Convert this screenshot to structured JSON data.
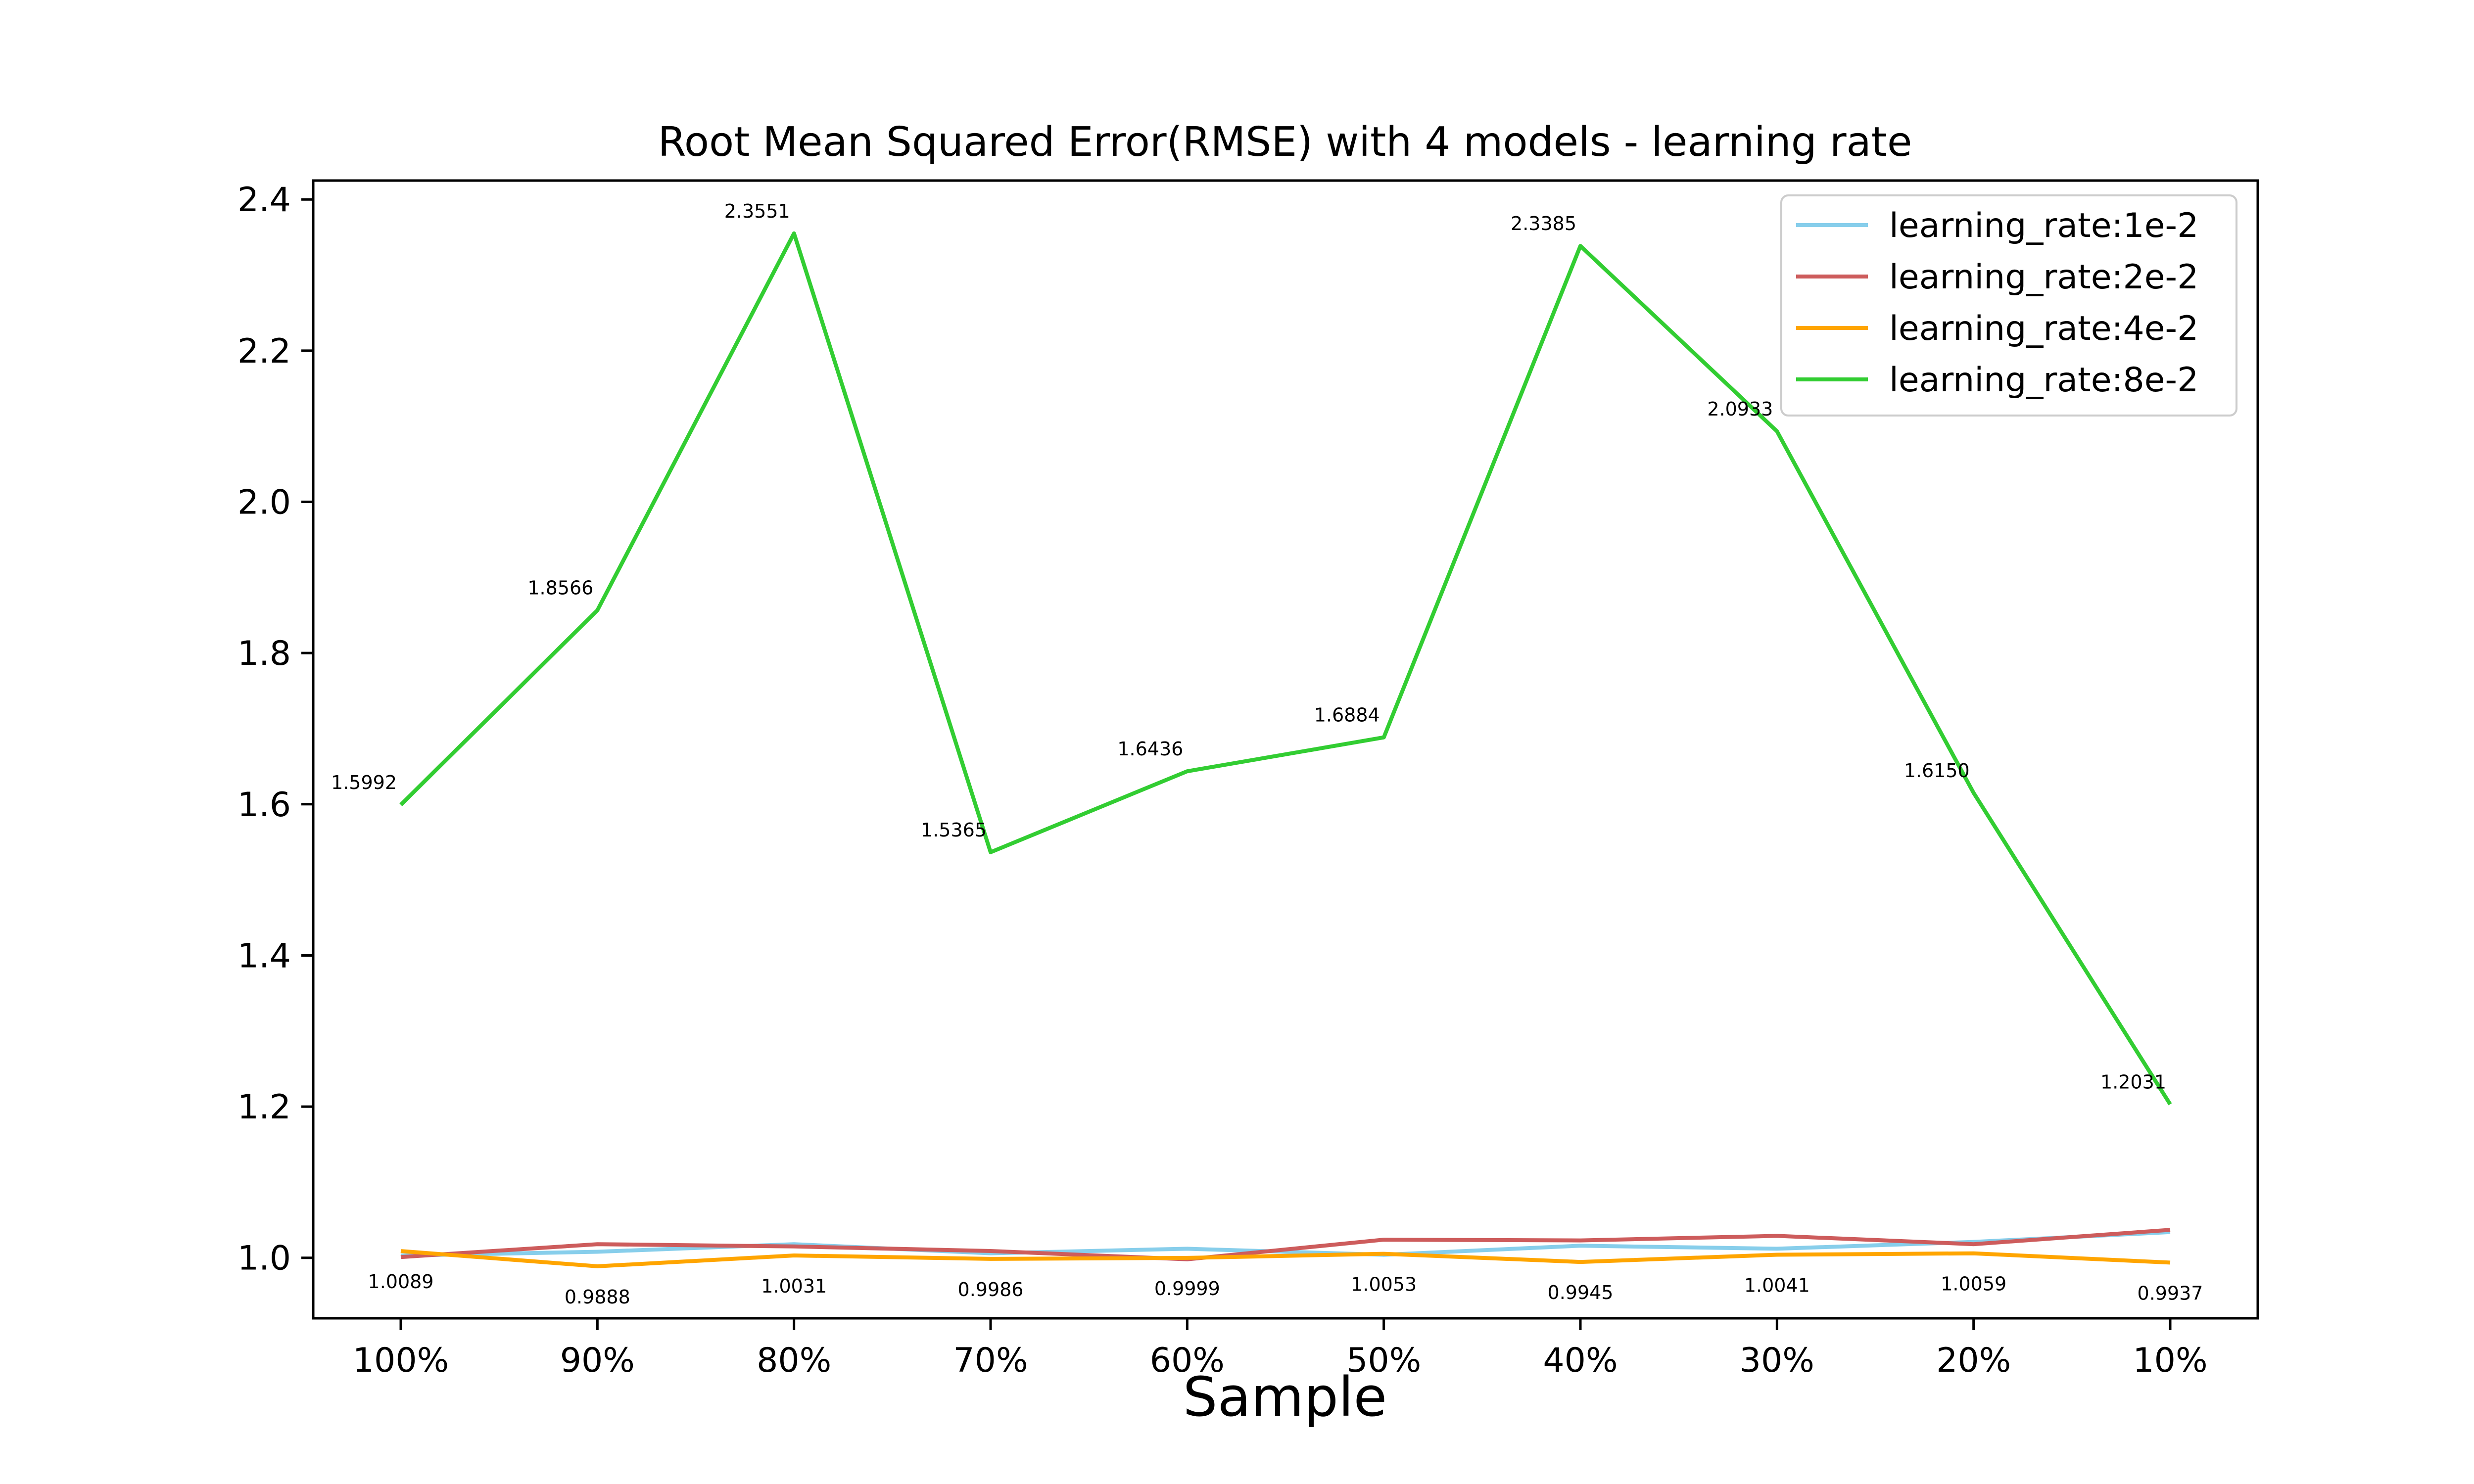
{
  "chart_data": {
    "type": "line",
    "title": "Root Mean Squared Error(RMSE) with 4 models - learning rate",
    "xlabel": "Sample",
    "ylabel": "",
    "categories": [
      "100%",
      "90%",
      "80%",
      "70%",
      "60%",
      "50%",
      "40%",
      "30%",
      "20%",
      "10%"
    ],
    "ylim": [
      0.92,
      2.425
    ],
    "yticks": [
      "1.0",
      "1.2",
      "1.4",
      "1.6",
      "1.8",
      "2.0",
      "2.2",
      "2.4"
    ],
    "yticks_values": [
      1.0,
      1.2,
      1.4,
      1.6,
      1.8,
      2.0,
      2.2,
      2.4
    ],
    "legend_position": "top-right",
    "grid": false,
    "series": [
      {
        "name": "learning_rate:1e-2",
        "color": "#87ceeb",
        "values": [
          1.003,
          1.008,
          1.018,
          1.006,
          1.012,
          1.004,
          1.016,
          1.012,
          1.021,
          1.034
        ]
      },
      {
        "name": "learning_rate:2e-2",
        "color": "#cd5c5c",
        "values": [
          1.001,
          1.018,
          1.015,
          1.009,
          0.998,
          1.024,
          1.023,
          1.029,
          1.018,
          1.037
        ]
      },
      {
        "name": "learning_rate:4e-2",
        "color": "#ffa500",
        "values": [
          1.0089,
          0.9888,
          1.0031,
          0.9986,
          0.9999,
          1.0053,
          0.9945,
          1.0041,
          1.0059,
          0.9937
        ],
        "labels": [
          "1.0089",
          "0.9888",
          "1.0031",
          "0.9986",
          "0.9999",
          "1.0053",
          "0.9945",
          "1.0041",
          "1.0059",
          "0.9937"
        ]
      },
      {
        "name": "learning_rate:8e-2",
        "color": "#32cd32",
        "values": [
          1.5992,
          1.8566,
          2.3551,
          1.5365,
          1.6436,
          1.6884,
          2.3385,
          2.0933,
          1.615,
          1.2031
        ],
        "labels": [
          "1.5992",
          "1.8566",
          "2.3551",
          "1.5365",
          "1.6436",
          "1.6884",
          "2.3385",
          "2.0933",
          "1.6150",
          "1.2031"
        ]
      }
    ]
  }
}
